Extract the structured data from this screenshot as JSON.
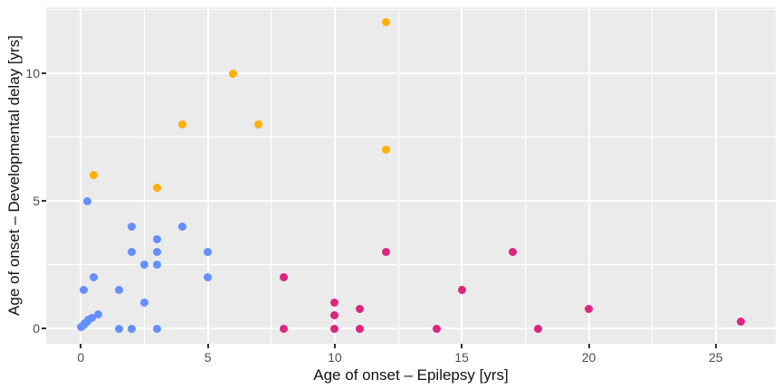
{
  "figure": {
    "kind": "scatter plot (ggplot style)",
    "background_color": "#FFFFFF",
    "panel_background_color": "#EBEBEB",
    "gridline_color": "#FFFFFF",
    "tick_mark_color": "#333333",
    "tick_label_color": "#4D4D4D",
    "axis_title_color": "#111111"
  },
  "chart_data": {
    "type": "scatter",
    "title": "",
    "xlabel": "Age of onset – Epilepsy [yrs]",
    "ylabel": "Age of onset – Developmental delay [yrs]",
    "xlim": [
      -1.3,
      27.3
    ],
    "ylim": [
      -0.6,
      12.6
    ],
    "x_ticks": [
      0,
      5,
      10,
      15,
      20,
      25
    ],
    "y_ticks": [
      0,
      5,
      10
    ],
    "x_minor_gridlines": [
      2.5,
      7.5,
      12.5,
      17.5,
      22.5
    ],
    "y_minor_gridlines": [
      2.5,
      7.5,
      12.5
    ],
    "grid": "major and minor, white on grey panel",
    "legend_position": "none",
    "series": [
      {
        "name": "blue-group",
        "color": "#648FFF",
        "points": [
          [
            0,
            0.05
          ],
          [
            0.1,
            0.12
          ],
          [
            0.15,
            0.2
          ],
          [
            0.25,
            0.28
          ],
          [
            0.3,
            0.35
          ],
          [
            0.45,
            0.4
          ],
          [
            0.7,
            0.55
          ],
          [
            0.1,
            1.5
          ],
          [
            0.25,
            5
          ],
          [
            0.5,
            2
          ],
          [
            1.5,
            0
          ],
          [
            1.5,
            1.5
          ],
          [
            2,
            0
          ],
          [
            2,
            3
          ],
          [
            2,
            4
          ],
          [
            2.5,
            1
          ],
          [
            2.5,
            2.5
          ],
          [
            3,
            0
          ],
          [
            3,
            2.5
          ],
          [
            3,
            3
          ],
          [
            3,
            3.5
          ],
          [
            4,
            4
          ],
          [
            5,
            2
          ],
          [
            5,
            3
          ]
        ]
      },
      {
        "name": "amber-group",
        "color": "#FFB000",
        "points": [
          [
            0.5,
            6
          ],
          [
            3,
            5.5
          ],
          [
            4,
            8
          ],
          [
            6,
            10
          ],
          [
            7,
            8
          ],
          [
            12,
            7
          ],
          [
            12,
            12
          ]
        ]
      },
      {
        "name": "magenta-group",
        "color": "#DC267F",
        "points": [
          [
            8,
            0
          ],
          [
            8,
            2
          ],
          [
            10,
            0
          ],
          [
            10,
            0.5
          ],
          [
            10,
            1
          ],
          [
            11,
            0
          ],
          [
            11,
            0.75
          ],
          [
            12,
            3
          ],
          [
            14,
            0
          ],
          [
            15,
            1.5
          ],
          [
            17,
            3
          ],
          [
            18,
            0
          ],
          [
            20,
            0.75
          ],
          [
            26,
            0.25
          ]
        ]
      }
    ]
  }
}
